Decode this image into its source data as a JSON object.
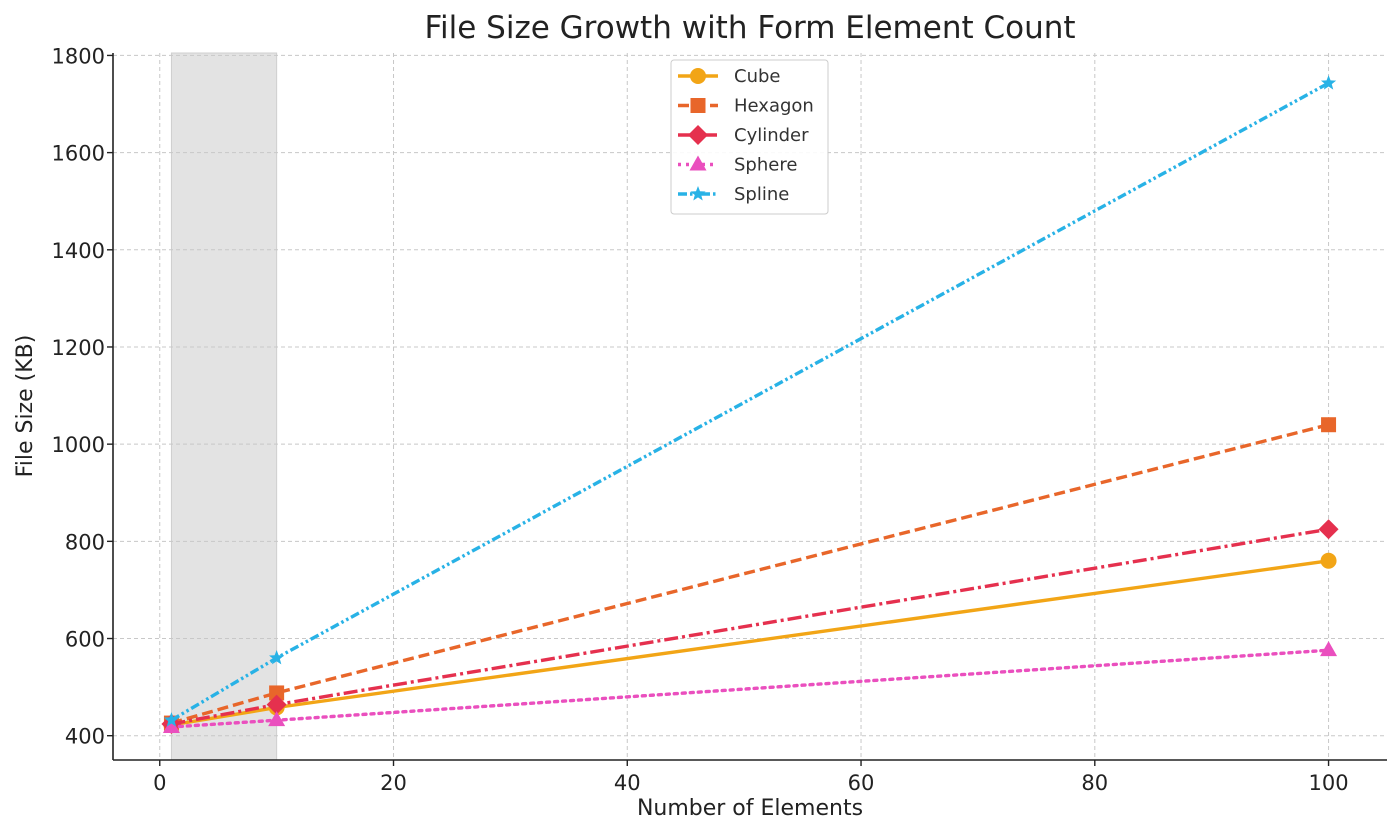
{
  "chart_data": {
    "type": "line",
    "title": "File Size Growth with Form Element Count",
    "xlabel": "Number of Elements",
    "ylabel": "File Size (KB)",
    "xlim": [
      -4,
      105
    ],
    "ylim": [
      350,
      1805
    ],
    "xticks": [
      0,
      20,
      40,
      60,
      80,
      100
    ],
    "yticks": [
      400,
      600,
      800,
      1000,
      1200,
      1400,
      1600,
      1800
    ],
    "grid": true,
    "legend_position": "top-center",
    "highlight_band": {
      "x_from": 1,
      "x_to": 10,
      "color": "#e3e3e3"
    },
    "x": [
      1,
      10,
      100
    ],
    "series": [
      {
        "name": "Cube",
        "values": [
          422,
          458,
          760
        ],
        "color": "#f2a516",
        "dash": "solid",
        "marker": "circle"
      },
      {
        "name": "Hexagon",
        "values": [
          426,
          488,
          1040
        ],
        "color": "#e8662a",
        "dash": "dashed",
        "marker": "square"
      },
      {
        "name": "Cylinder",
        "values": [
          424,
          464,
          825
        ],
        "color": "#e5304e",
        "dash": "dashdot",
        "marker": "diamond"
      },
      {
        "name": "Sphere",
        "values": [
          418,
          432,
          576
        ],
        "color": "#ea4fbe",
        "dash": "dotted",
        "marker": "triangle"
      },
      {
        "name": "Spline",
        "values": [
          432,
          560,
          1743
        ],
        "color": "#28b2e6",
        "dash": "dashdotdot",
        "marker": "star"
      }
    ]
  }
}
